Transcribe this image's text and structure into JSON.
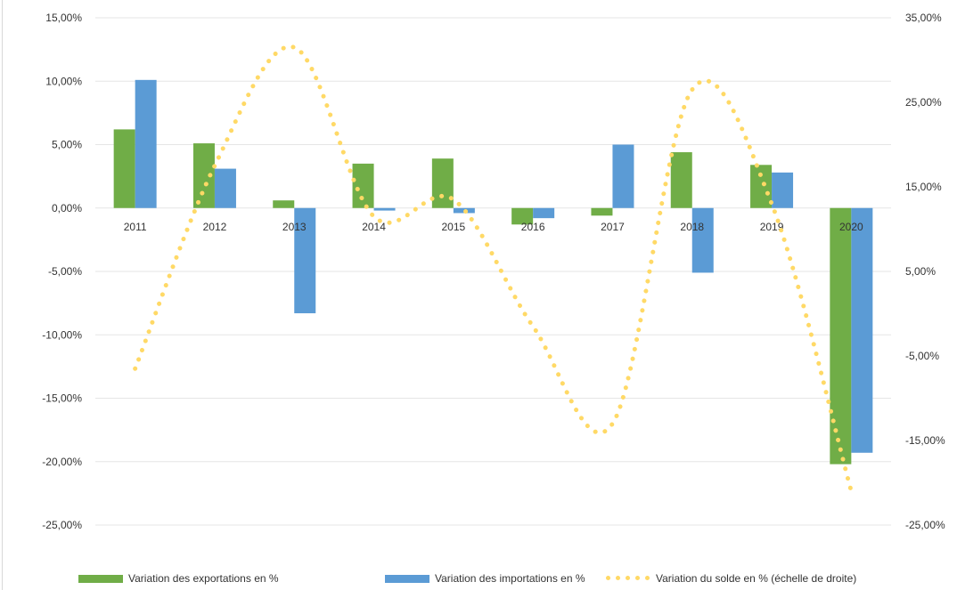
{
  "chart_data": {
    "type": "bar",
    "categories": [
      "2011",
      "2012",
      "2013",
      "2014",
      "2015",
      "2016",
      "2017",
      "2018",
      "2019",
      "2020"
    ],
    "series": [
      {
        "name": "Variation des exportations en %",
        "type": "bar",
        "axis": "left",
        "color": "#70AD47",
        "values": [
          6.2,
          5.1,
          0.6,
          3.5,
          3.9,
          -1.3,
          -0.6,
          4.4,
          3.4,
          -20.2
        ]
      },
      {
        "name": "Variation des importations en %",
        "type": "bar",
        "axis": "left",
        "color": "#5B9BD5",
        "values": [
          10.1,
          3.1,
          -8.3,
          -0.2,
          -0.4,
          -0.8,
          5.0,
          -5.1,
          2.8,
          -19.3
        ]
      },
      {
        "name": "Variation du solde en % (échelle de droite)",
        "type": "line",
        "style": "dotted",
        "smooth": true,
        "axis": "right",
        "color": "#FFD966",
        "values": [
          -6.5,
          17.5,
          31.5,
          11.5,
          13.5,
          -1.5,
          -13.0,
          26.5,
          13.0,
          -21.0
        ]
      }
    ],
    "yleft": {
      "ticks": [
        "15,00%",
        "10,00%",
        "5,00%",
        "0,00%",
        "-5,00%",
        "-10,00%",
        "-15,00%",
        "-20,00%",
        "-25,00%"
      ],
      "ylim": [
        -25,
        15
      ],
      "step": 5
    },
    "yright": {
      "ticks": [
        "35,00%",
        "25,00%",
        "15,00%",
        "5,00%",
        "-5,00%",
        "-15,00%",
        "-25,00%"
      ],
      "ylim": [
        -25,
        35
      ],
      "step": 10
    },
    "grid": true,
    "legend_position": "bottom"
  }
}
